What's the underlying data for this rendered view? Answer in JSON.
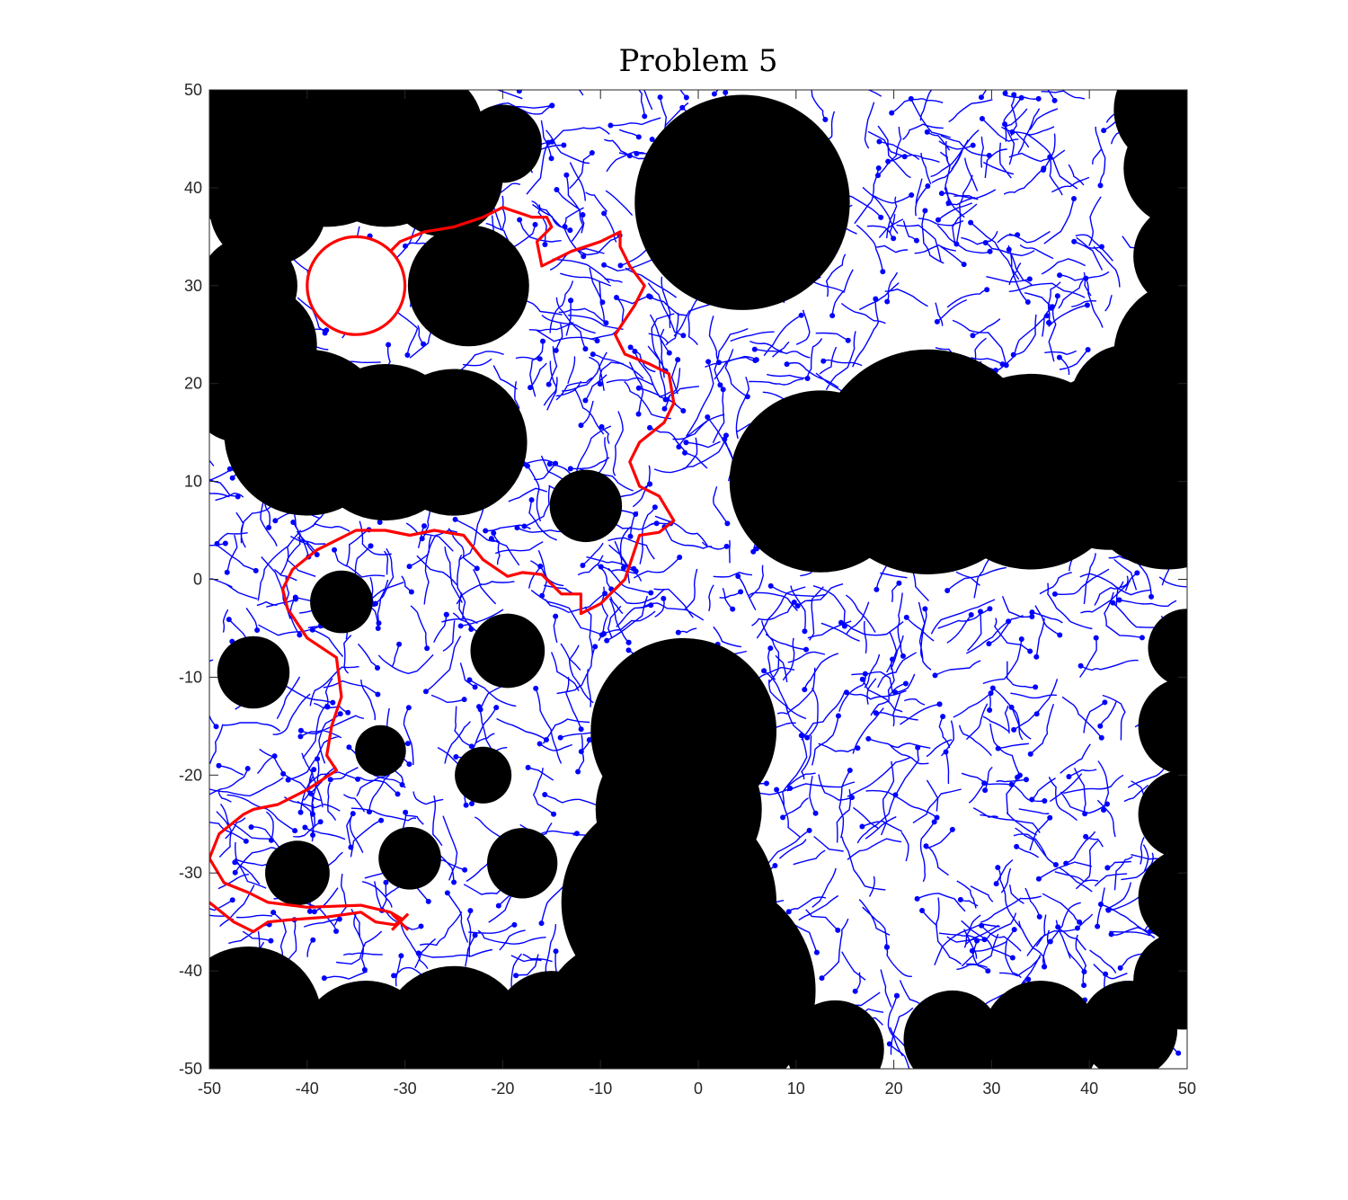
{
  "chart_data": {
    "type": "scatter",
    "title": "Problem 5",
    "xlabel": "",
    "ylabel": "",
    "xlim": [
      -50,
      50
    ],
    "ylim": [
      -50,
      50
    ],
    "xticks": [
      -50,
      -40,
      -30,
      -20,
      -10,
      0,
      10,
      20,
      30,
      40,
      50
    ],
    "yticks": [
      -50,
      -40,
      -30,
      -20,
      -10,
      0,
      10,
      20,
      30,
      40,
      50
    ],
    "grid": false,
    "legend": "none",
    "colors": {
      "obstacle": "#000000",
      "tree": "#0000ff",
      "path": "#ff0000",
      "axis": "#262626"
    },
    "obstacles": [
      {
        "x": -46,
        "y": 46,
        "r": 10
      },
      {
        "x": -38,
        "y": 45,
        "r": 9
      },
      {
        "x": -32,
        "y": 44,
        "r": 8
      },
      {
        "x": -28,
        "y": 46,
        "r": 6
      },
      {
        "x": -26,
        "y": 41,
        "r": 6
      },
      {
        "x": -20,
        "y": 44.5,
        "r": 4
      },
      {
        "x": -44,
        "y": 38,
        "r": 6
      },
      {
        "x": -46,
        "y": 30,
        "r": 5
      },
      {
        "x": -45,
        "y": 24,
        "r": 6
      },
      {
        "x": -23.5,
        "y": 30,
        "r": 6.2
      },
      {
        "x": -40,
        "y": 15,
        "r": 8.5
      },
      {
        "x": -32,
        "y": 14,
        "r": 8
      },
      {
        "x": -25,
        "y": 14,
        "r": 7.5
      },
      {
        "x": -47,
        "y": 19,
        "r": 5
      },
      {
        "x": 4.5,
        "y": 38.5,
        "r": 11
      },
      {
        "x": 48.5,
        "y": 48,
        "r": 6
      },
      {
        "x": 49.5,
        "y": 42,
        "r": 6
      },
      {
        "x": 50,
        "y": 33,
        "r": 5.5
      },
      {
        "x": 50,
        "y": 23,
        "r": 7.5
      },
      {
        "x": 12.5,
        "y": 10,
        "r": 9.3
      },
      {
        "x": 23.5,
        "y": 12,
        "r": 11.5
      },
      {
        "x": 34,
        "y": 11,
        "r": 10
      },
      {
        "x": 42,
        "y": 12,
        "r": 9
      },
      {
        "x": 48,
        "y": 10,
        "r": 9
      },
      {
        "x": 44,
        "y": 18,
        "r": 6
      },
      {
        "x": -11.5,
        "y": 7.5,
        "r": 3.7
      },
      {
        "x": -36.5,
        "y": -2.3,
        "r": 3.2
      },
      {
        "x": -45.5,
        "y": -9.5,
        "r": 3.7
      },
      {
        "x": -19.5,
        "y": -7.3,
        "r": 3.8
      },
      {
        "x": -32.5,
        "y": -17.5,
        "r": 2.6
      },
      {
        "x": -22,
        "y": -20,
        "r": 2.9
      },
      {
        "x": -41,
        "y": -30,
        "r": 3.3
      },
      {
        "x": -29.5,
        "y": -28.5,
        "r": 3.2
      },
      {
        "x": -18,
        "y": -29,
        "r": 3.6
      },
      {
        "x": -1.5,
        "y": -15.5,
        "r": 9.5
      },
      {
        "x": -2,
        "y": -23.5,
        "r": 8.5
      },
      {
        "x": -3,
        "y": -33,
        "r": 11
      },
      {
        "x": 0,
        "y": -42,
        "r": 12
      },
      {
        "x": -46,
        "y": -45,
        "r": 7.5
      },
      {
        "x": -34,
        "y": -48,
        "r": 7
      },
      {
        "x": -25,
        "y": -47,
        "r": 7.5
      },
      {
        "x": -15,
        "y": -46,
        "r": 6
      },
      {
        "x": -8,
        "y": -45,
        "r": 8
      },
      {
        "x": 14,
        "y": -48,
        "r": 5
      },
      {
        "x": 26,
        "y": -47,
        "r": 5
      },
      {
        "x": 35,
        "y": -47,
        "r": 6
      },
      {
        "x": 44,
        "y": -46,
        "r": 5
      },
      {
        "x": 50,
        "y": -7,
        "r": 4
      },
      {
        "x": 50,
        "y": -15,
        "r": 5
      },
      {
        "x": 49.5,
        "y": -24,
        "r": 4.5
      },
      {
        "x": 50,
        "y": -32.5,
        "r": 5
      },
      {
        "x": 49.5,
        "y": -41,
        "r": 5
      }
    ],
    "goal_circle": {
      "x": -35,
      "y": 30,
      "r": 5
    },
    "start_marker": {
      "x": -30.5,
      "y": -35
    },
    "path": [
      [
        -50,
        -33
      ],
      [
        -47.5,
        -35
      ],
      [
        -45.5,
        -36
      ],
      [
        -44,
        -35
      ],
      [
        -42,
        -34.8
      ],
      [
        -38,
        -34.5
      ],
      [
        -34.5,
        -34
      ],
      [
        -33,
        -35
      ],
      [
        -31,
        -35.3
      ],
      [
        -30.3,
        -34.7
      ],
      [
        -31.5,
        -34
      ],
      [
        -34.5,
        -33.3
      ],
      [
        -40,
        -33.5
      ],
      [
        -44,
        -33
      ],
      [
        -46,
        -32
      ],
      [
        -48.5,
        -31
      ],
      [
        -50,
        -28.5
      ],
      [
        -49,
        -26
      ],
      [
        -46.5,
        -24
      ],
      [
        -45.5,
        -23.5
      ],
      [
        -43,
        -23
      ],
      [
        -40,
        -21.5
      ],
      [
        -37,
        -19.5
      ],
      [
        -38,
        -18
      ],
      [
        -37.5,
        -15
      ],
      [
        -36.5,
        -12
      ],
      [
        -37,
        -8
      ],
      [
        -40,
        -6
      ],
      [
        -42,
        -3
      ],
      [
        -42.5,
        -1
      ],
      [
        -41.5,
        1
      ],
      [
        -39,
        3
      ],
      [
        -36,
        4.5
      ],
      [
        -35,
        5
      ],
      [
        -32,
        5
      ],
      [
        -29.5,
        4.5
      ],
      [
        -27,
        5
      ],
      [
        -24,
        4.5
      ],
      [
        -22,
        2
      ],
      [
        -19.5,
        0.3
      ],
      [
        -18,
        0.7
      ],
      [
        -16,
        0.5
      ],
      [
        -14,
        -1.5
      ],
      [
        -12,
        -1.5
      ],
      [
        -12,
        -3.5
      ],
      [
        -10,
        -2.5
      ],
      [
        -7.5,
        0
      ],
      [
        -6,
        4.5
      ],
      [
        -4,
        4.8
      ],
      [
        -2.5,
        6
      ],
      [
        -4,
        8.5
      ],
      [
        -6,
        9.5
      ],
      [
        -7,
        12
      ],
      [
        -6,
        14
      ],
      [
        -3.5,
        16
      ],
      [
        -2.5,
        18
      ],
      [
        -3,
        21
      ],
      [
        -5,
        22
      ],
      [
        -7.5,
        23
      ],
      [
        -8.5,
        25
      ],
      [
        -6.5,
        28
      ],
      [
        -5.5,
        30
      ],
      [
        -7,
        32
      ],
      [
        -8,
        34
      ],
      [
        -8,
        35.5
      ],
      [
        -10,
        34.5
      ],
      [
        -13,
        33.5
      ],
      [
        -16,
        32
      ],
      [
        -16.5,
        34.5
      ],
      [
        -15,
        36
      ],
      [
        -15.5,
        37
      ],
      [
        -17,
        37
      ],
      [
        -20,
        38
      ],
      [
        -22,
        37
      ],
      [
        -25,
        36
      ],
      [
        -28,
        35.5
      ],
      [
        -30.5,
        34.5
      ],
      [
        -31.5,
        33.5
      ],
      [
        -33,
        34.3
      ],
      [
        -35,
        35
      ]
    ]
  }
}
